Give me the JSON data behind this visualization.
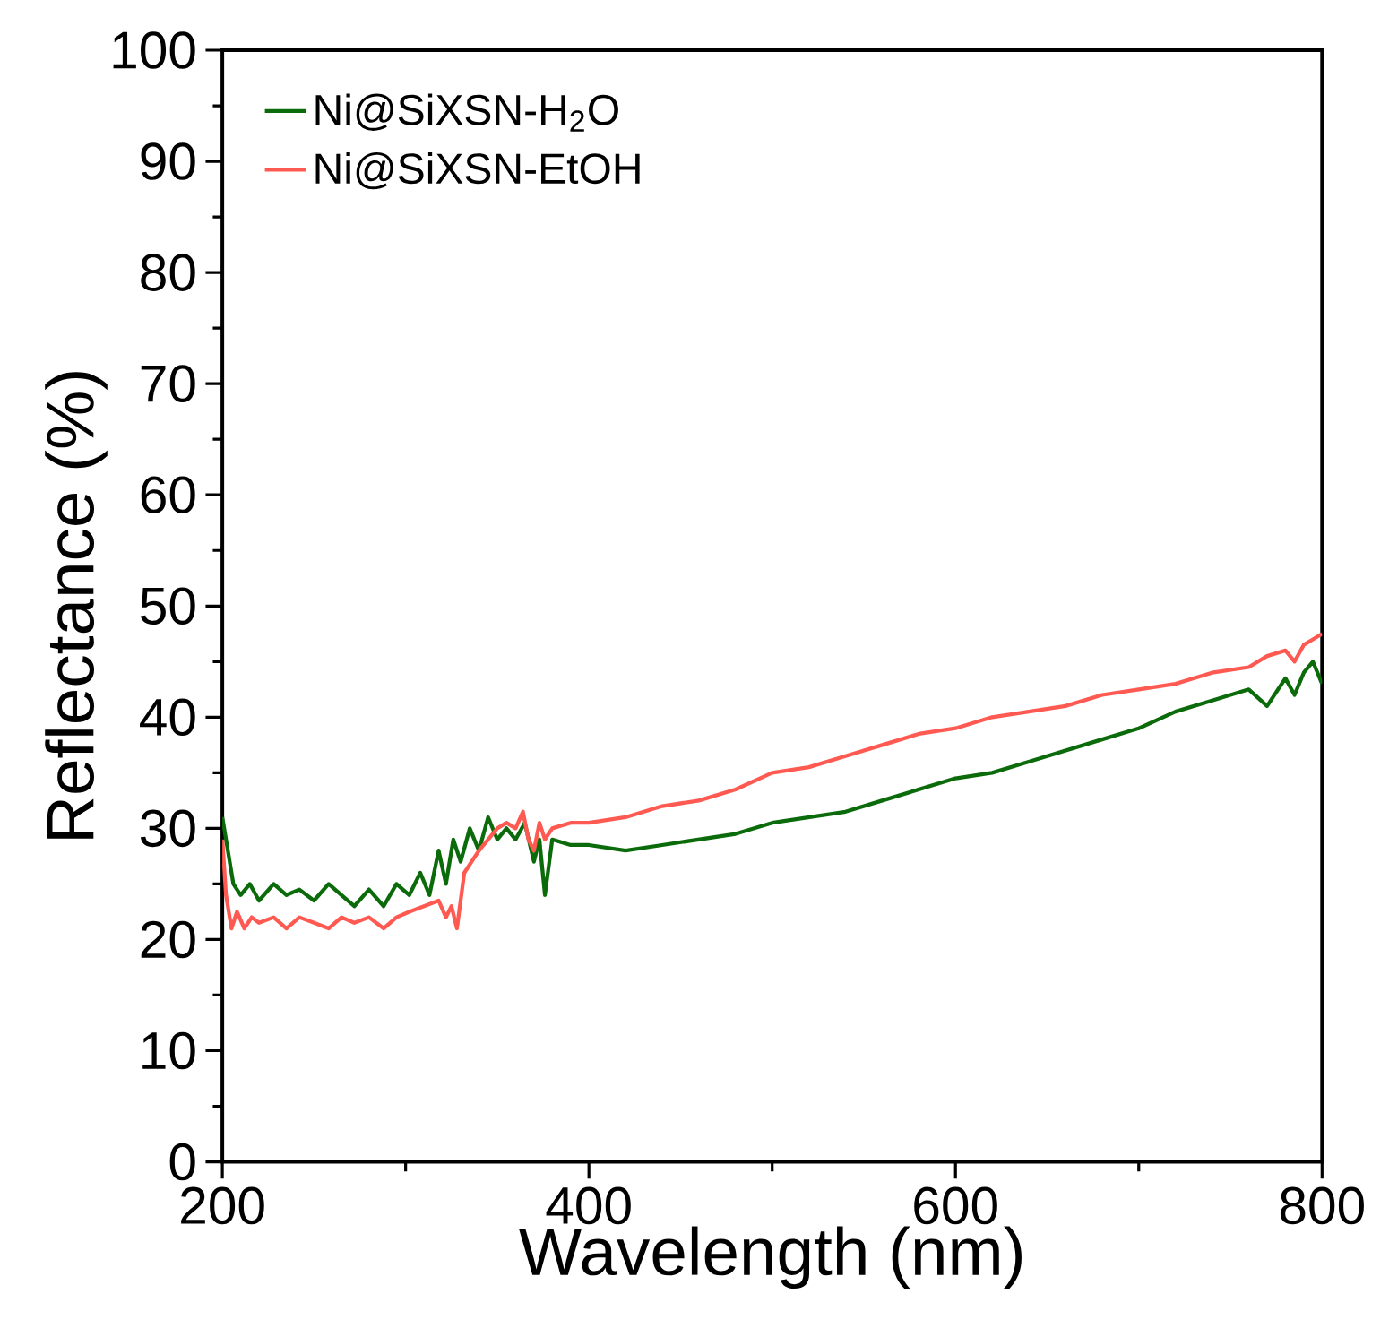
{
  "chart_data": {
    "type": "line",
    "xlabel": "Wavelength (nm)",
    "ylabel": "Reflectance (%)",
    "xlim": [
      200,
      800
    ],
    "ylim": [
      0,
      100
    ],
    "xticks": [
      200,
      400,
      600,
      800
    ],
    "yticks": [
      0,
      10,
      20,
      30,
      40,
      50,
      60,
      70,
      80,
      90,
      100
    ],
    "grid": false,
    "legend": "top left",
    "marker": "none",
    "line_style": "solid",
    "series": [
      {
        "name": "Ni@SiXSN-H$_{2}$O",
        "color": "#0b6b0b",
        "x": [
          200,
          203,
          206,
          210,
          215,
          220,
          228,
          235,
          242,
          250,
          258,
          265,
          272,
          280,
          288,
          295,
          302,
          308,
          313,
          318,
          322,
          326,
          330,
          335,
          340,
          345,
          350,
          355,
          360,
          365,
          370,
          373,
          376,
          380,
          390,
          400,
          420,
          440,
          460,
          480,
          500,
          520,
          540,
          560,
          580,
          600,
          620,
          640,
          660,
          680,
          700,
          720,
          740,
          760,
          770,
          780,
          785,
          790,
          795,
          800
        ],
        "values": [
          31,
          28,
          25,
          24,
          25,
          23.5,
          25,
          24,
          24.5,
          23.5,
          25,
          24,
          23,
          24.5,
          23,
          25,
          24,
          26,
          24,
          28,
          25,
          29,
          27,
          30,
          28,
          31,
          29,
          30,
          29,
          30.5,
          27,
          29,
          24,
          29,
          28.5,
          28.5,
          28,
          28.5,
          29,
          29.5,
          30.5,
          31,
          31.5,
          32.5,
          33.5,
          34.5,
          35,
          36,
          37,
          38,
          39,
          40.5,
          41.5,
          42.5,
          41,
          43.5,
          42,
          44,
          45,
          43
        ]
      },
      {
        "name": "Ni@SiXSN-EtOH",
        "color": "#ff5a52",
        "x": [
          200,
          202,
          205,
          208,
          212,
          216,
          220,
          228,
          235,
          242,
          250,
          258,
          265,
          272,
          280,
          288,
          295,
          302,
          310,
          318,
          322,
          325,
          328,
          332,
          336,
          340,
          345,
          350,
          355,
          360,
          364,
          367,
          370,
          373,
          376,
          380,
          390,
          400,
          420,
          440,
          460,
          480,
          500,
          520,
          540,
          560,
          580,
          600,
          620,
          640,
          660,
          680,
          700,
          720,
          740,
          760,
          770,
          780,
          785,
          790,
          795,
          800
        ],
        "values": [
          29,
          24,
          21,
          22.5,
          21,
          22,
          21.5,
          22,
          21,
          22,
          21.5,
          21,
          22,
          21.5,
          22,
          21,
          22,
          22.5,
          23,
          23.5,
          22,
          23,
          21,
          26,
          27,
          28,
          29,
          30,
          30.5,
          30,
          31.5,
          29,
          28,
          30.5,
          29,
          30,
          30.5,
          30.5,
          31,
          32,
          32.5,
          33.5,
          35,
          35.5,
          36.5,
          37.5,
          38.5,
          39,
          40,
          40.5,
          41,
          42,
          42.5,
          43,
          44,
          44.5,
          45.5,
          46,
          45,
          46.5,
          47,
          47.5
        ]
      }
    ]
  }
}
